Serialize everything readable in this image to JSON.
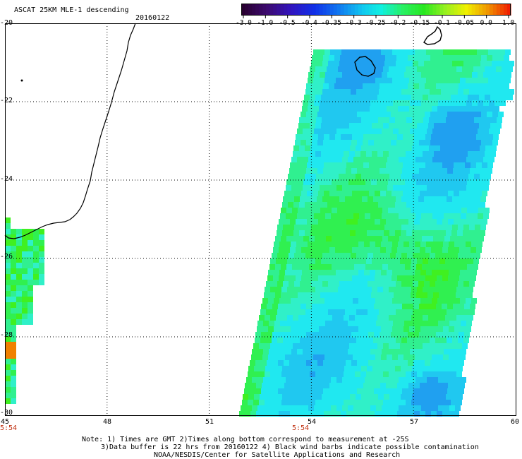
{
  "header": {
    "title": "ASCAT 25KM MLE-1 descending",
    "date": "20160122"
  },
  "colorbar": {
    "ticks": [
      "-3.0",
      "-1.0",
      "-0.5",
      "-0.4",
      "-0.35",
      "-0.3",
      "-0.25",
      "-0.2",
      "-0.15",
      "-0.1",
      "-0.05",
      "0.0",
      "1.0"
    ],
    "colors": [
      "#2a0030",
      "#4a1080",
      "#3010c0",
      "#1030e8",
      "#1070f0",
      "#10b8f0",
      "#10f0e0",
      "#40f060",
      "#20e820",
      "#90f020",
      "#f0f000",
      "#f0a000",
      "#f02000"
    ]
  },
  "axes": {
    "lat_labels": [
      "-20",
      "-22",
      "-24",
      "-26",
      "-28",
      "-30"
    ],
    "lon_labels": [
      "45",
      "48",
      "51",
      "54",
      "57",
      "60"
    ],
    "lon_range": [
      45,
      60
    ],
    "lat_range": [
      -30,
      -20
    ]
  },
  "times": [
    "5:54",
    "5:54"
  ],
  "footer": {
    "line1": "Note: 1) Times are GMT 2)Times along bottom correspond to measurement at -25S",
    "line2": "3)Data buffer is 22 hrs from 20160122 4) Black wind barbs indicate possible contamination",
    "line3": "NOAA/NESDIS/Center for Satellite Applications and Research"
  }
}
